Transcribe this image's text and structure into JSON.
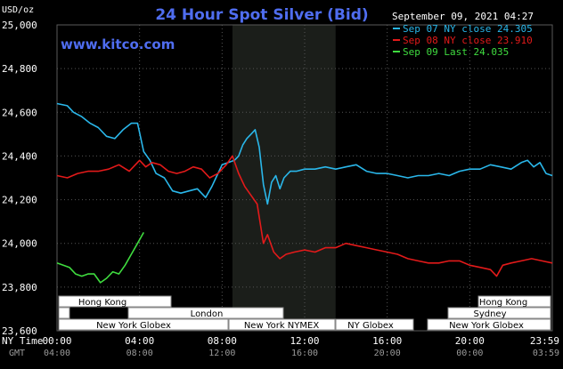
{
  "header": {
    "title": "24 Hour Spot Silver (Bid)",
    "site": "www.kitco.com",
    "timestamp": "September 09, 2021 04:27",
    "unit": "USD/oz"
  },
  "legend": [
    {
      "label": "Sep 07 NY close 24.305",
      "color": "#2ab7ea"
    },
    {
      "label": "Sep 08 NY close 23.910",
      "color": "#e31a1a"
    },
    {
      "label": "Sep 09 Last 24.035",
      "color": "#3fdc3f"
    }
  ],
  "time_axis": {
    "ny_label": "NY Time",
    "gmt_label": "GMT",
    "ny_ticks": [
      "00:00",
      "04:00",
      "08:00",
      "12:00",
      "16:00",
      "20:00",
      "23:59"
    ],
    "gmt_ticks": [
      "04:00",
      "08:00",
      "12:00",
      "16:00",
      "20:00",
      "00:00",
      "03:59"
    ]
  },
  "sessions": {
    "hong_kong": "Hong Kong",
    "london": "London",
    "new_york_globex": "New York Globex",
    "new_york_nymex": "New York NYMEX",
    "ny_globex": "NY Globex",
    "sydney": "Sydney"
  },
  "chart_data": {
    "type": "line",
    "title": "24 Hour Spot Silver (Bid)",
    "ylabel": "USD/oz",
    "xlabel": "NY Time",
    "ylim": [
      23.6,
      25.0
    ],
    "xlim": [
      0,
      24
    ],
    "y_ticks": [
      "25,000",
      "24,800",
      "24,600",
      "24,400",
      "24,200",
      "24,000",
      "23,800",
      "23,600"
    ],
    "y_tick_values": [
      25.0,
      24.8,
      24.6,
      24.4,
      24.2,
      24.0,
      23.8,
      23.6
    ],
    "grid": true,
    "legend_position": "top-right",
    "nymex_session": [
      8.5,
      13.5
    ],
    "series": [
      {
        "name": "Sep 07 NY close 24.305",
        "color": "#2ab7ea",
        "x": [
          0,
          0.5,
          0.8,
          1.2,
          1.6,
          2.0,
          2.4,
          2.8,
          3.2,
          3.6,
          3.9,
          4.2,
          4.5,
          4.8,
          5.2,
          5.6,
          6.0,
          6.4,
          6.8,
          7.2,
          7.5,
          7.7,
          8.0,
          8.3,
          8.6,
          8.8,
          9.0,
          9.2,
          9.4,
          9.6,
          9.8,
          10.0,
          10.2,
          10.4,
          10.6,
          10.8,
          11.0,
          11.3,
          11.6,
          12.0,
          12.5,
          13.0,
          13.5,
          14.0,
          14.5,
          15.0,
          15.5,
          16.0,
          16.5,
          17.0,
          17.5,
          18.0,
          18.5,
          19.0,
          19.5,
          20.0,
          20.5,
          21.0,
          21.5,
          22.0,
          22.5,
          22.8,
          23.1,
          23.4,
          23.7,
          24.0
        ],
        "values": [
          24.64,
          24.63,
          24.6,
          24.58,
          24.55,
          24.53,
          24.49,
          24.48,
          24.52,
          24.55,
          24.55,
          24.42,
          24.38,
          24.32,
          24.3,
          24.24,
          24.23,
          24.24,
          24.25,
          24.21,
          24.26,
          24.3,
          24.36,
          24.37,
          24.38,
          24.4,
          24.45,
          24.48,
          24.5,
          24.52,
          24.44,
          24.27,
          24.18,
          24.28,
          24.31,
          24.25,
          24.3,
          24.33,
          24.33,
          24.34,
          24.34,
          24.35,
          24.34,
          24.35,
          24.36,
          24.33,
          24.32,
          24.32,
          24.31,
          24.3,
          24.31,
          24.31,
          24.32,
          24.31,
          24.33,
          24.34,
          24.34,
          24.36,
          24.35,
          24.34,
          24.37,
          24.38,
          24.35,
          24.37,
          24.32,
          24.31
        ]
      },
      {
        "name": "Sep 08 NY close 23.910",
        "color": "#e31a1a",
        "x": [
          0,
          0.5,
          1.0,
          1.5,
          2.0,
          2.5,
          3.0,
          3.5,
          4.0,
          4.3,
          4.6,
          5.0,
          5.4,
          5.8,
          6.2,
          6.6,
          7.0,
          7.4,
          7.8,
          8.2,
          8.5,
          8.8,
          9.1,
          9.4,
          9.7,
          10.0,
          10.2,
          10.5,
          10.8,
          11.1,
          11.5,
          12.0,
          12.5,
          13.0,
          13.5,
          14.0,
          14.5,
          15.0,
          15.5,
          16.0,
          16.5,
          17.0,
          17.5,
          18.0,
          18.5,
          19.0,
          19.5,
          20.0,
          20.5,
          21.0,
          21.3,
          21.6,
          22.0,
          22.5,
          23.0,
          23.5,
          24.0
        ],
        "values": [
          24.31,
          24.3,
          24.32,
          24.33,
          24.33,
          24.34,
          24.36,
          24.33,
          24.38,
          24.35,
          24.37,
          24.36,
          24.33,
          24.32,
          24.33,
          24.35,
          24.34,
          24.3,
          24.32,
          24.36,
          24.4,
          24.32,
          24.26,
          24.22,
          24.18,
          24.0,
          24.04,
          23.96,
          23.93,
          23.95,
          23.96,
          23.97,
          23.96,
          23.98,
          23.98,
          24.0,
          23.99,
          23.98,
          23.97,
          23.96,
          23.95,
          23.93,
          23.92,
          23.91,
          23.91,
          23.92,
          23.92,
          23.9,
          23.89,
          23.88,
          23.85,
          23.9,
          23.91,
          23.92,
          23.93,
          23.92,
          23.91
        ]
      },
      {
        "name": "Sep 09 Last 24.035",
        "color": "#3fdc3f",
        "x": [
          0,
          0.3,
          0.6,
          0.9,
          1.2,
          1.5,
          1.8,
          2.1,
          2.4,
          2.7,
          3.0,
          3.3,
          3.6,
          3.9,
          4.2
        ],
        "values": [
          23.91,
          23.9,
          23.89,
          23.86,
          23.85,
          23.86,
          23.86,
          23.82,
          23.84,
          23.87,
          23.86,
          23.9,
          23.95,
          24.0,
          24.05
        ]
      }
    ]
  }
}
